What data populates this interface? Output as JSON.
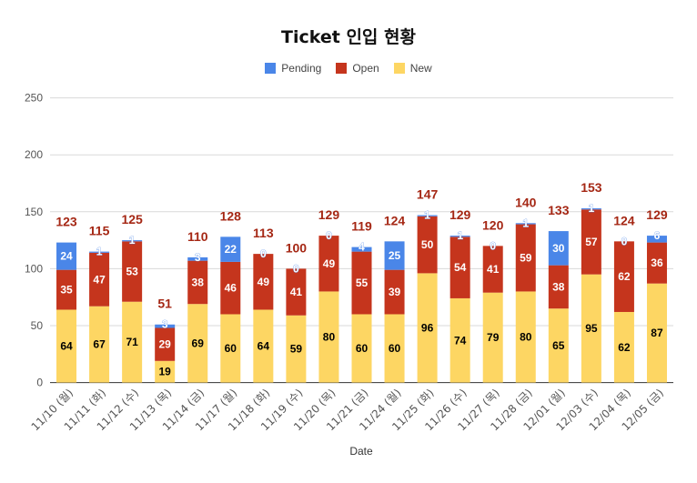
{
  "chart_data": {
    "type": "bar",
    "stacked": true,
    "title": "Ticket 인입 현황",
    "xlabel": "Date",
    "ylabel": "",
    "ylim": [
      0,
      250
    ],
    "yticks": [
      0,
      50,
      100,
      150,
      200,
      250
    ],
    "grid": true,
    "legend_position": "top",
    "categories": [
      "11/10 (월)",
      "11/11 (화)",
      "11/12 (수)",
      "11/13 (목)",
      "11/14 (금)",
      "11/17 (월)",
      "11/18 (화)",
      "11/19 (수)",
      "11/20 (목)",
      "11/21 (금)",
      "11/24 (월)",
      "11/25 (화)",
      "11/26 (수)",
      "11/27 (목)",
      "11/28 (금)",
      "12/01 (월)",
      "12/03 (수)",
      "12/04 (목)",
      "12/05 (금)"
    ],
    "series": [
      {
        "name": "New",
        "color": "#FDD663",
        "label_color": "#000000",
        "values": [
          64,
          67,
          71,
          19,
          69,
          60,
          64,
          59,
          80,
          60,
          60,
          96,
          74,
          79,
          80,
          65,
          95,
          62,
          87
        ]
      },
      {
        "name": "Open",
        "color": "#C5351D",
        "label_color": "#FFFFFF",
        "values": [
          35,
          47,
          53,
          29,
          38,
          46,
          49,
          41,
          49,
          55,
          39,
          50,
          54,
          41,
          59,
          38,
          57,
          62,
          36
        ]
      },
      {
        "name": "Pending",
        "color": "#4A86E8",
        "label_color": "#FFFFFF",
        "values": [
          24,
          1,
          1,
          3,
          3,
          22,
          0,
          0,
          0,
          4,
          25,
          1,
          1,
          0,
          1,
          30,
          1,
          0,
          6
        ]
      }
    ],
    "legend_order": [
      "Pending",
      "Open",
      "New"
    ],
    "totals": [
      123,
      115,
      125,
      51,
      110,
      128,
      113,
      100,
      129,
      119,
      124,
      147,
      129,
      120,
      140,
      133,
      153,
      124,
      129
    ],
    "total_label_color": "#A52714"
  }
}
